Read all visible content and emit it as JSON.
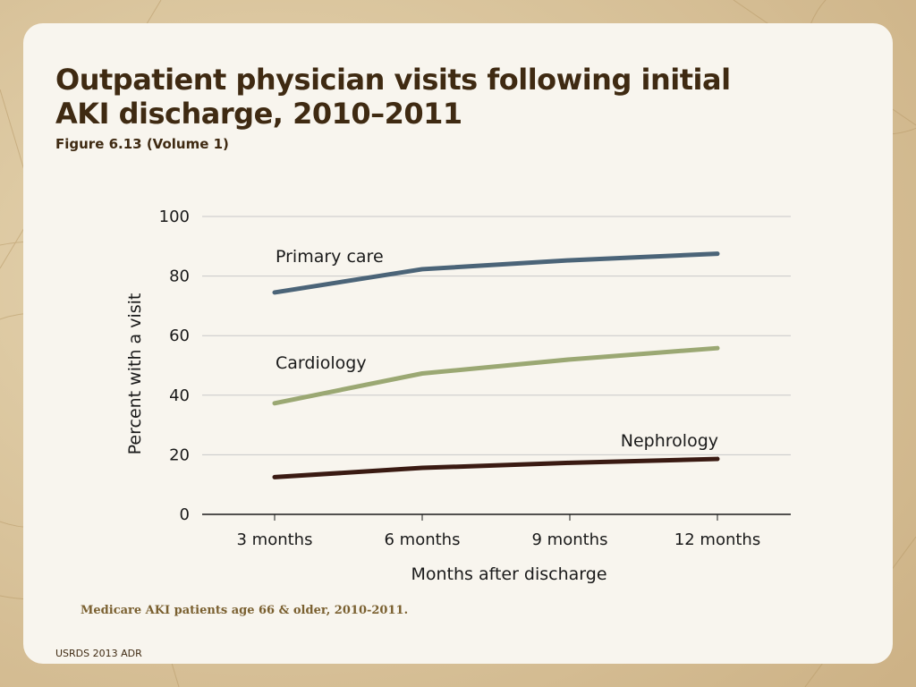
{
  "slide": {
    "title": "Outpatient physician visits following initial AKI discharge, 2010–2011",
    "subtitle": "Figure 6.13 (Volume 1)",
    "note": "Medicare AKI patients age 66 & older, 2010-2011.",
    "footer": "USRDS 2013 ADR"
  },
  "colors": {
    "panel": "#f8f5ee",
    "title": "#3f2a12",
    "note": "#7a6030"
  },
  "chart_data": {
    "type": "line",
    "categories": [
      "3 months",
      "6 months",
      "9 months",
      "12 months"
    ],
    "xlabel": "Months after discharge",
    "ylabel": "Percent with a visit",
    "ylim": [
      0,
      100
    ],
    "yticks": [
      0,
      20,
      40,
      60,
      80,
      100
    ],
    "grid": true,
    "series": [
      {
        "name": "Primary care",
        "values": [
          74.5,
          82.3,
          85.3,
          87.5
        ],
        "color": "#4b6478"
      },
      {
        "name": "Cardiology",
        "values": [
          37.3,
          47.3,
          52.0,
          55.8
        ],
        "color": "#9ba873"
      },
      {
        "name": "Nephrology",
        "values": [
          12.5,
          15.6,
          17.3,
          18.6
        ],
        "color": "#3a1a12"
      }
    ]
  }
}
